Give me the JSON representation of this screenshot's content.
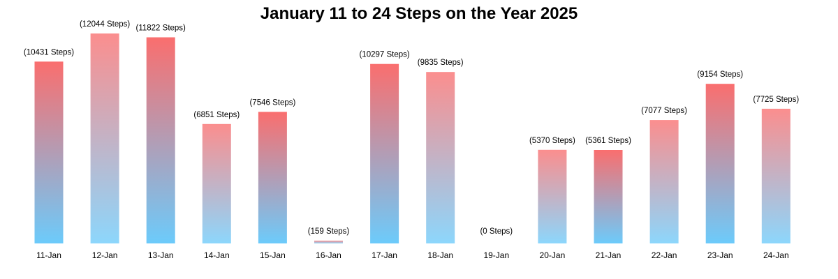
{
  "chart_data": {
    "type": "bar",
    "title": "January 11 to 24 Steps on the Year 2025",
    "xlabel": "",
    "ylabel": "",
    "categories": [
      "11-Jan",
      "12-Jan",
      "13-Jan",
      "14-Jan",
      "15-Jan",
      "16-Jan",
      "17-Jan",
      "18-Jan",
      "19-Jan",
      "20-Jan",
      "21-Jan",
      "22-Jan",
      "23-Jan",
      "24-Jan"
    ],
    "values": [
      10431,
      12044,
      11822,
      6851,
      7546,
      159,
      10297,
      9835,
      0,
      5370,
      5361,
      7077,
      9154,
      7725
    ],
    "data_labels": [
      "(10431 Steps)",
      "(12044 Steps)",
      "(11822 Steps)",
      "(6851 Steps)",
      "(7546 Steps)",
      "(159 Steps)",
      "(10297 Steps)",
      "(9835 Steps)",
      "(0 Steps)",
      "(5370 Steps)",
      "(5361 Steps)",
      "(7077 Steps)",
      "(9154 Steps)",
      "(7725 Steps)"
    ],
    "ylim": [
      0,
      12044
    ],
    "grid": false,
    "legend": "none",
    "colors": {
      "gradient_top": "#fa6e6e",
      "gradient_bottom": "#6ccbfb"
    }
  }
}
